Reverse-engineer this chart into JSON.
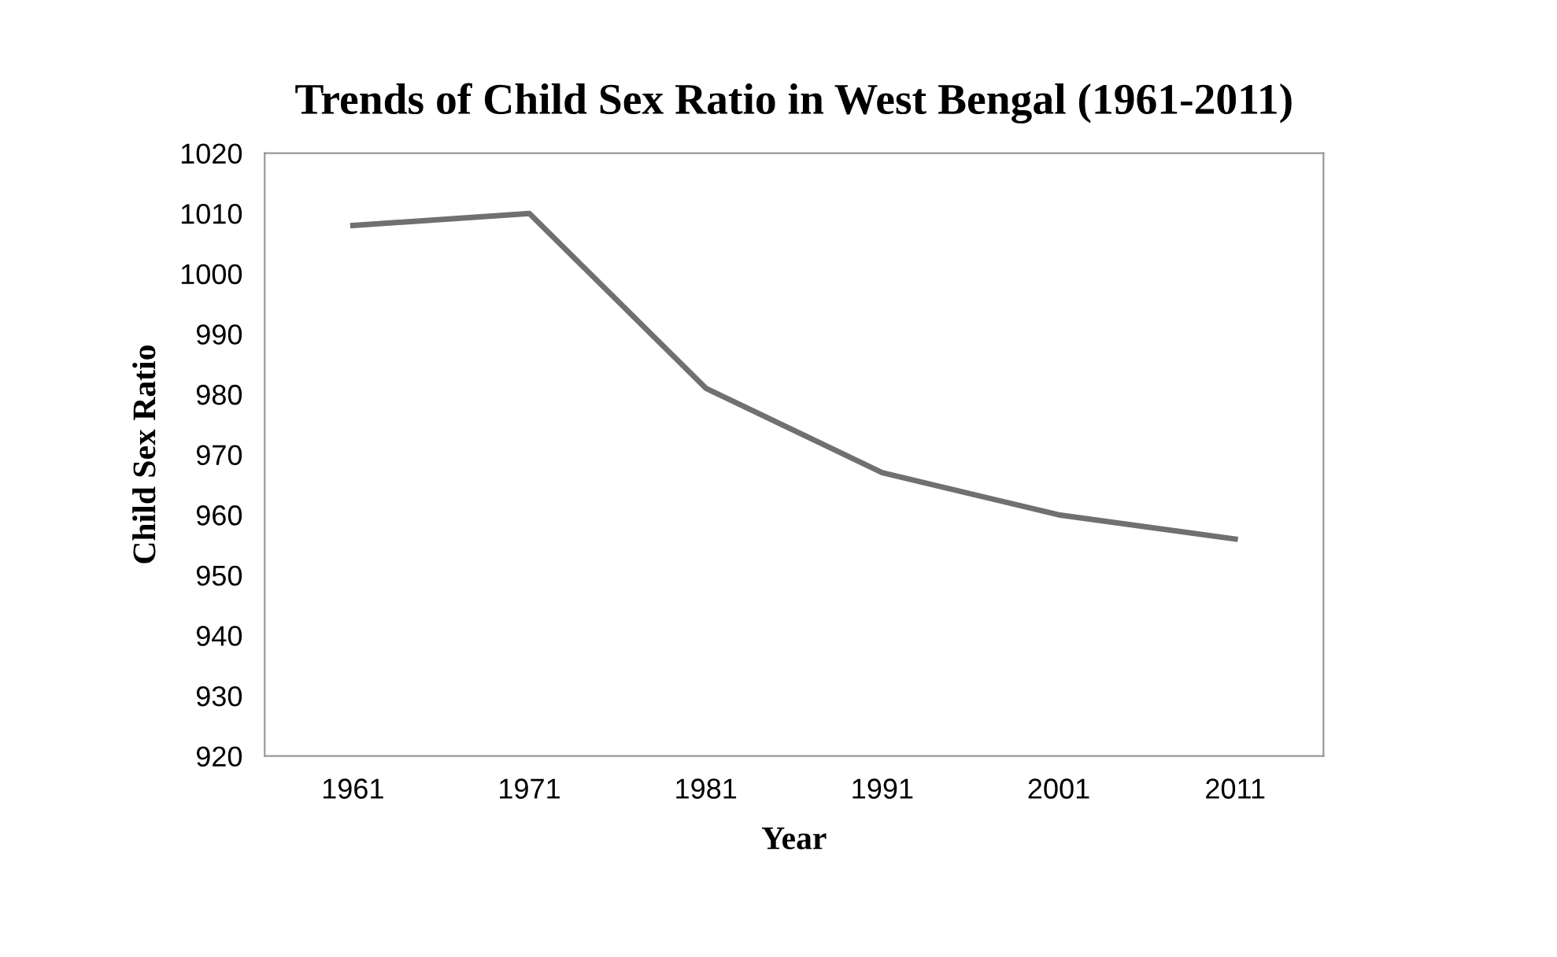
{
  "chart_data": {
    "type": "line",
    "title": "Trends of Child Sex Ratio in West Bengal (1961-2011)",
    "xlabel": "Year",
    "ylabel": "Child Sex Ratio",
    "categories": [
      "1961",
      "1971",
      "1981",
      "1991",
      "2001",
      "2011"
    ],
    "series": [
      {
        "color": "#707070",
        "values": [
          1008,
          1010,
          981,
          967,
          960,
          956
        ]
      }
    ],
    "ylim": [
      920,
      1020
    ],
    "yticks": [
      920,
      930,
      940,
      950,
      960,
      970,
      980,
      990,
      1000,
      1010,
      1020
    ],
    "grid": false,
    "legend": false,
    "marker": "none",
    "line_style": "solid"
  }
}
